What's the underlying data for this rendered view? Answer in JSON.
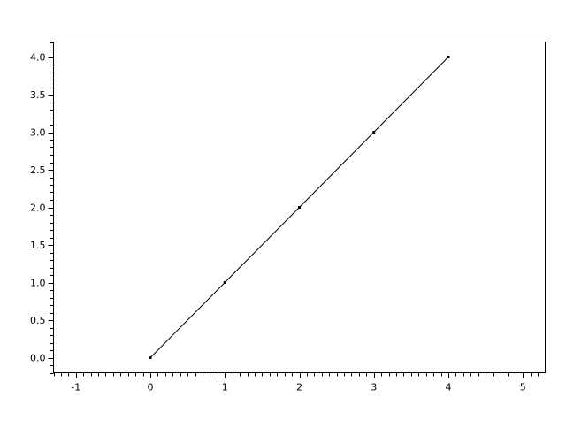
{
  "chart_data": {
    "type": "line",
    "title": "",
    "xlabel": "",
    "ylabel": "",
    "x": [
      0,
      1,
      2,
      3,
      4
    ],
    "series": [
      {
        "values": [
          0,
          1,
          2,
          3,
          4
        ],
        "color": "#000000",
        "marker": "point"
      }
    ],
    "xlim": [
      -1.3,
      5.3
    ],
    "ylim": [
      -0.2,
      4.2
    ],
    "xticks": [
      -1,
      0,
      1,
      2,
      3,
      4,
      5
    ],
    "xtick_labels": [
      "-1",
      "0",
      "1",
      "2",
      "3",
      "4",
      "5"
    ],
    "yticks": [
      0,
      0.5,
      1,
      1.5,
      2,
      2.5,
      3,
      3.5,
      4
    ],
    "ytick_labels": [
      "0.0",
      "0.5",
      "1.0",
      "1.5",
      "2.0",
      "2.5",
      "3.0",
      "3.5",
      "4.0"
    ],
    "minor_tick_step": 0.1,
    "grid": false,
    "legend": "none"
  }
}
